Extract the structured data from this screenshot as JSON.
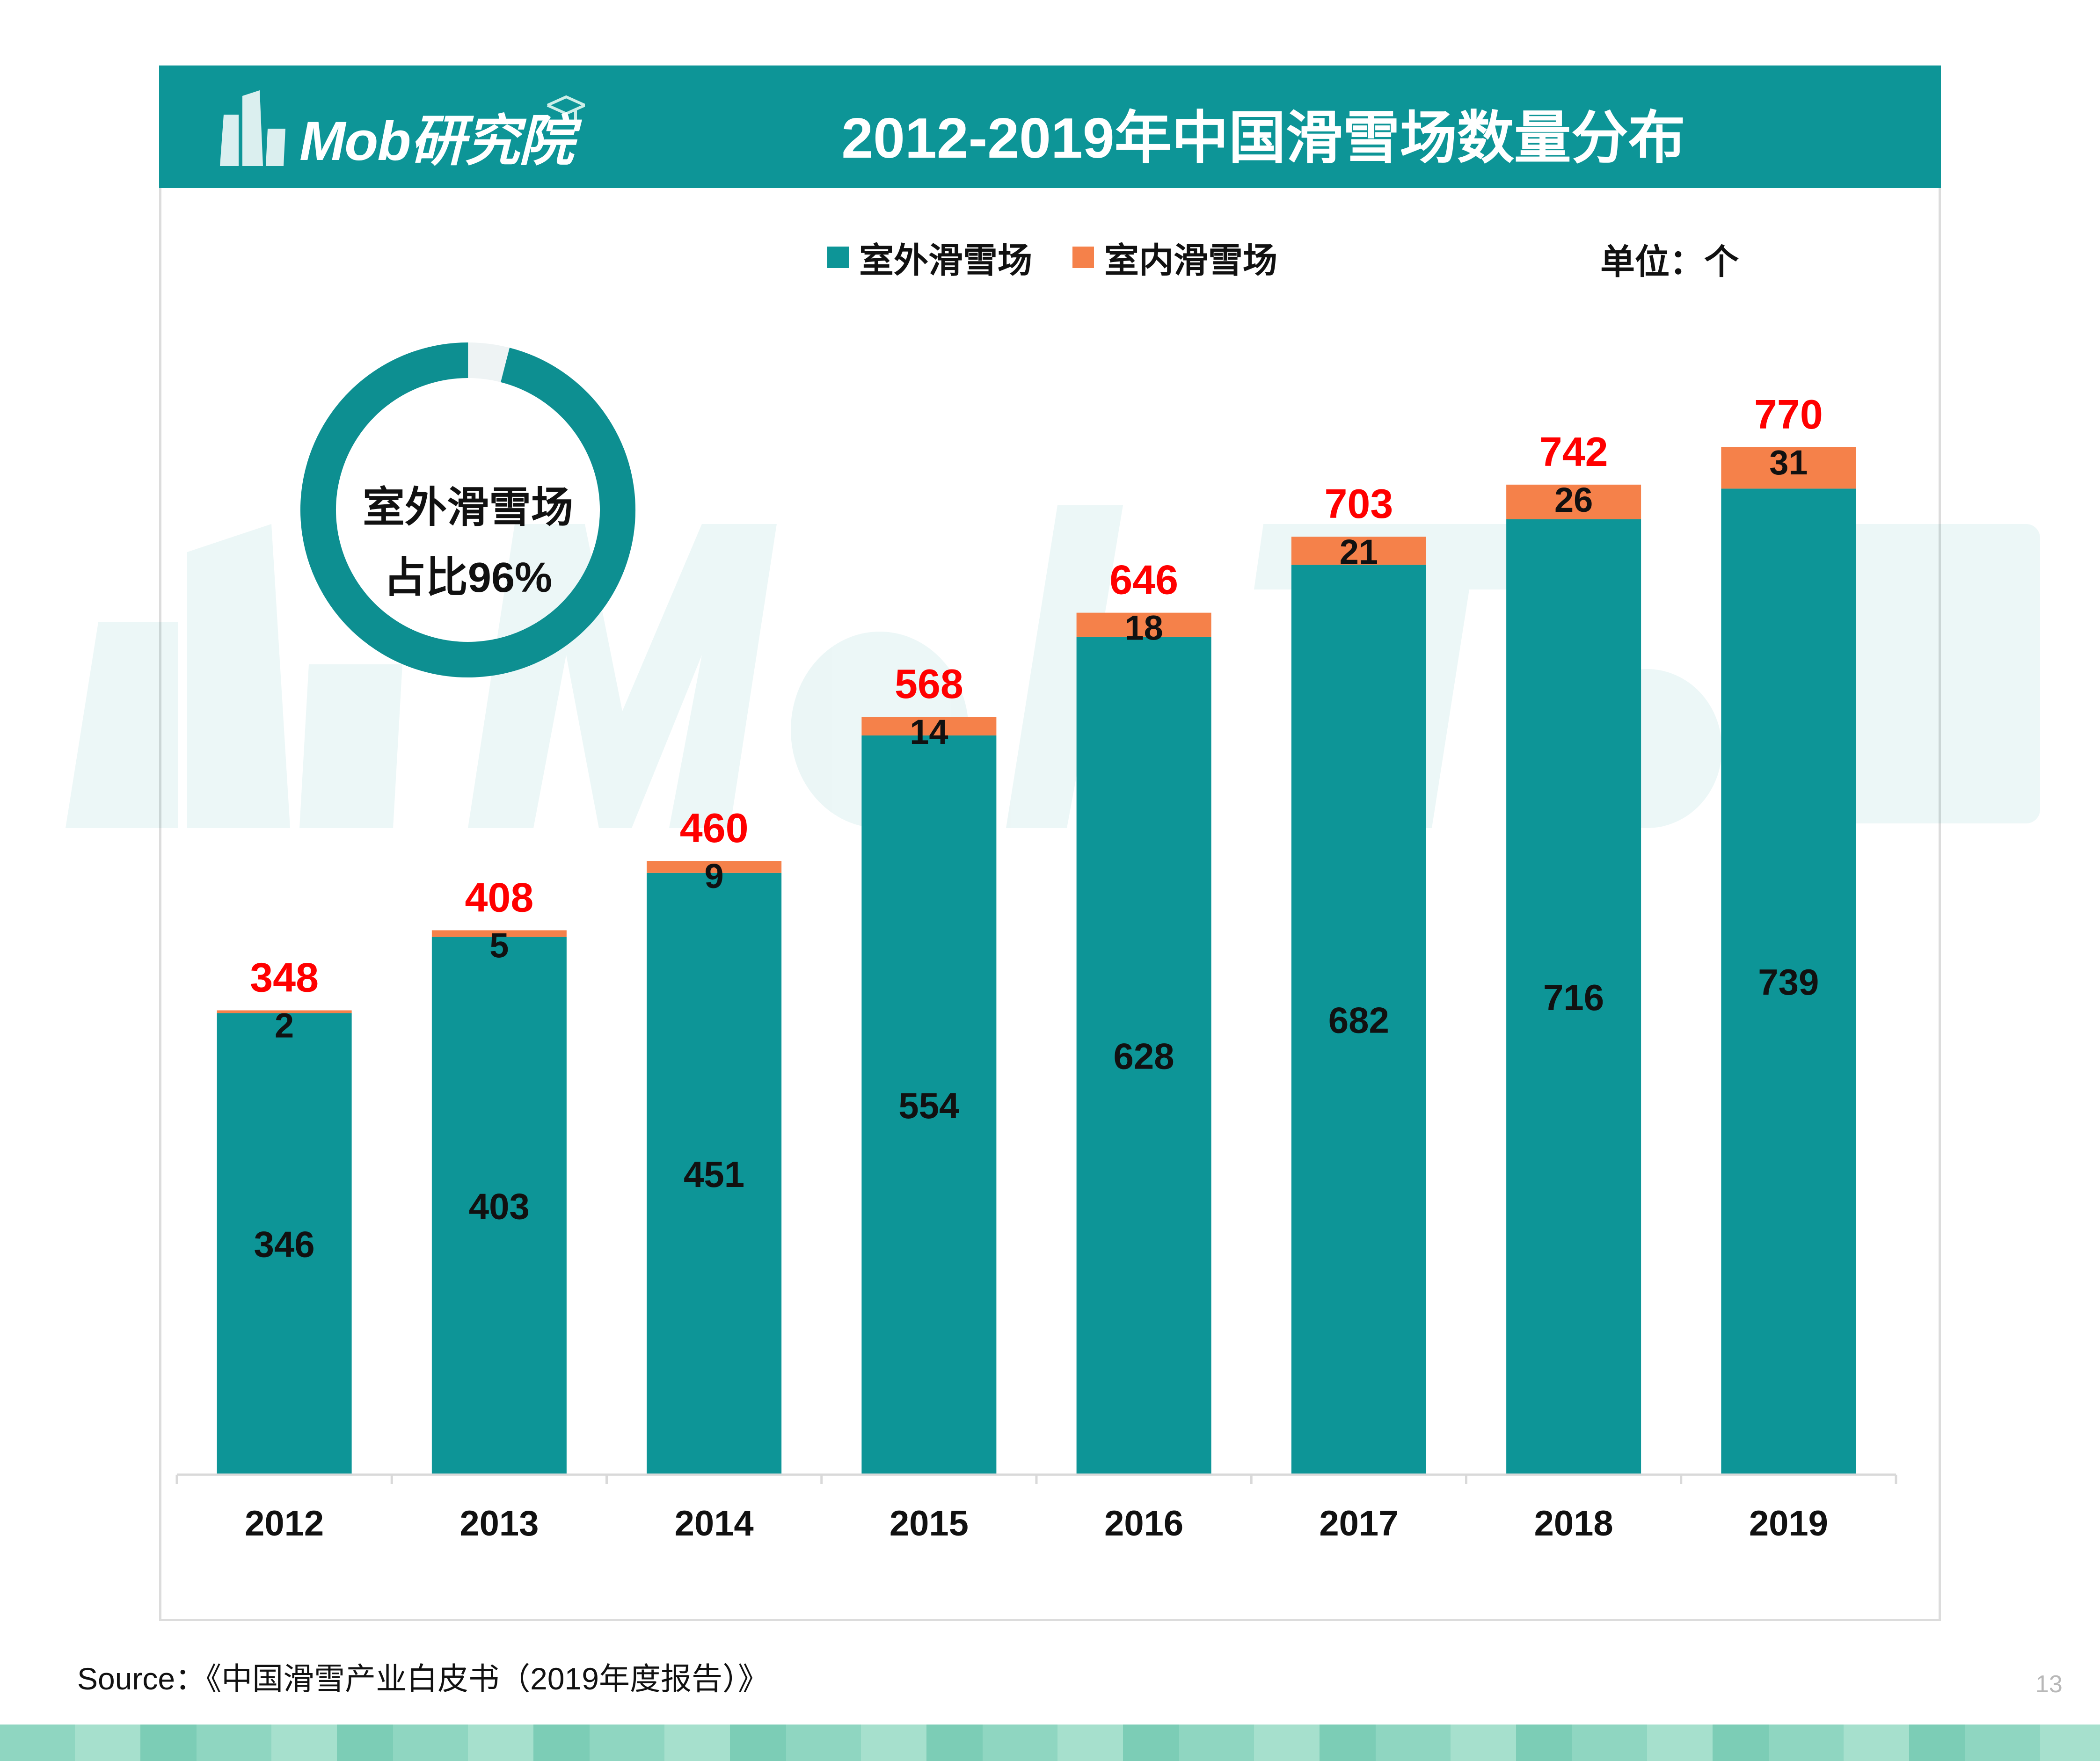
{
  "header": {
    "logo_text": "Mob研究院",
    "title": "2012-2019年中国滑雪场数量分布"
  },
  "legend": {
    "outdoor_label": "室外滑雪场",
    "indoor_label": "室内滑雪场",
    "unit": "单位：个"
  },
  "donut": {
    "label_line1": "室外滑雪场",
    "label_line2": "占比96%",
    "outdoor_share": 0.96
  },
  "colors": {
    "header": "#0d9597",
    "outdoor": "#0d9597",
    "indoor": "#f5814a",
    "total_label": "#ff0000"
  },
  "chart_data": {
    "type": "bar",
    "stacked": true,
    "categories": [
      "2012",
      "2013",
      "2014",
      "2015",
      "2016",
      "2017",
      "2018",
      "2019"
    ],
    "series": [
      {
        "name": "室外滑雪场",
        "values": [
          346,
          403,
          451,
          554,
          628,
          682,
          716,
          739
        ]
      },
      {
        "name": "室内滑雪场",
        "values": [
          2,
          5,
          9,
          14,
          18,
          21,
          26,
          31
        ]
      }
    ],
    "totals": [
      348,
      408,
      460,
      568,
      646,
      703,
      742,
      770
    ],
    "title": "2012-2019年中国滑雪场数量分布",
    "xlabel": "",
    "ylabel": "",
    "ylim": [
      0,
      770
    ],
    "grid": false,
    "legend_position": "top-center"
  },
  "footer": {
    "source": "Source：《中国滑雪产业白皮书（2019年度报告）》",
    "page_number": "13"
  }
}
